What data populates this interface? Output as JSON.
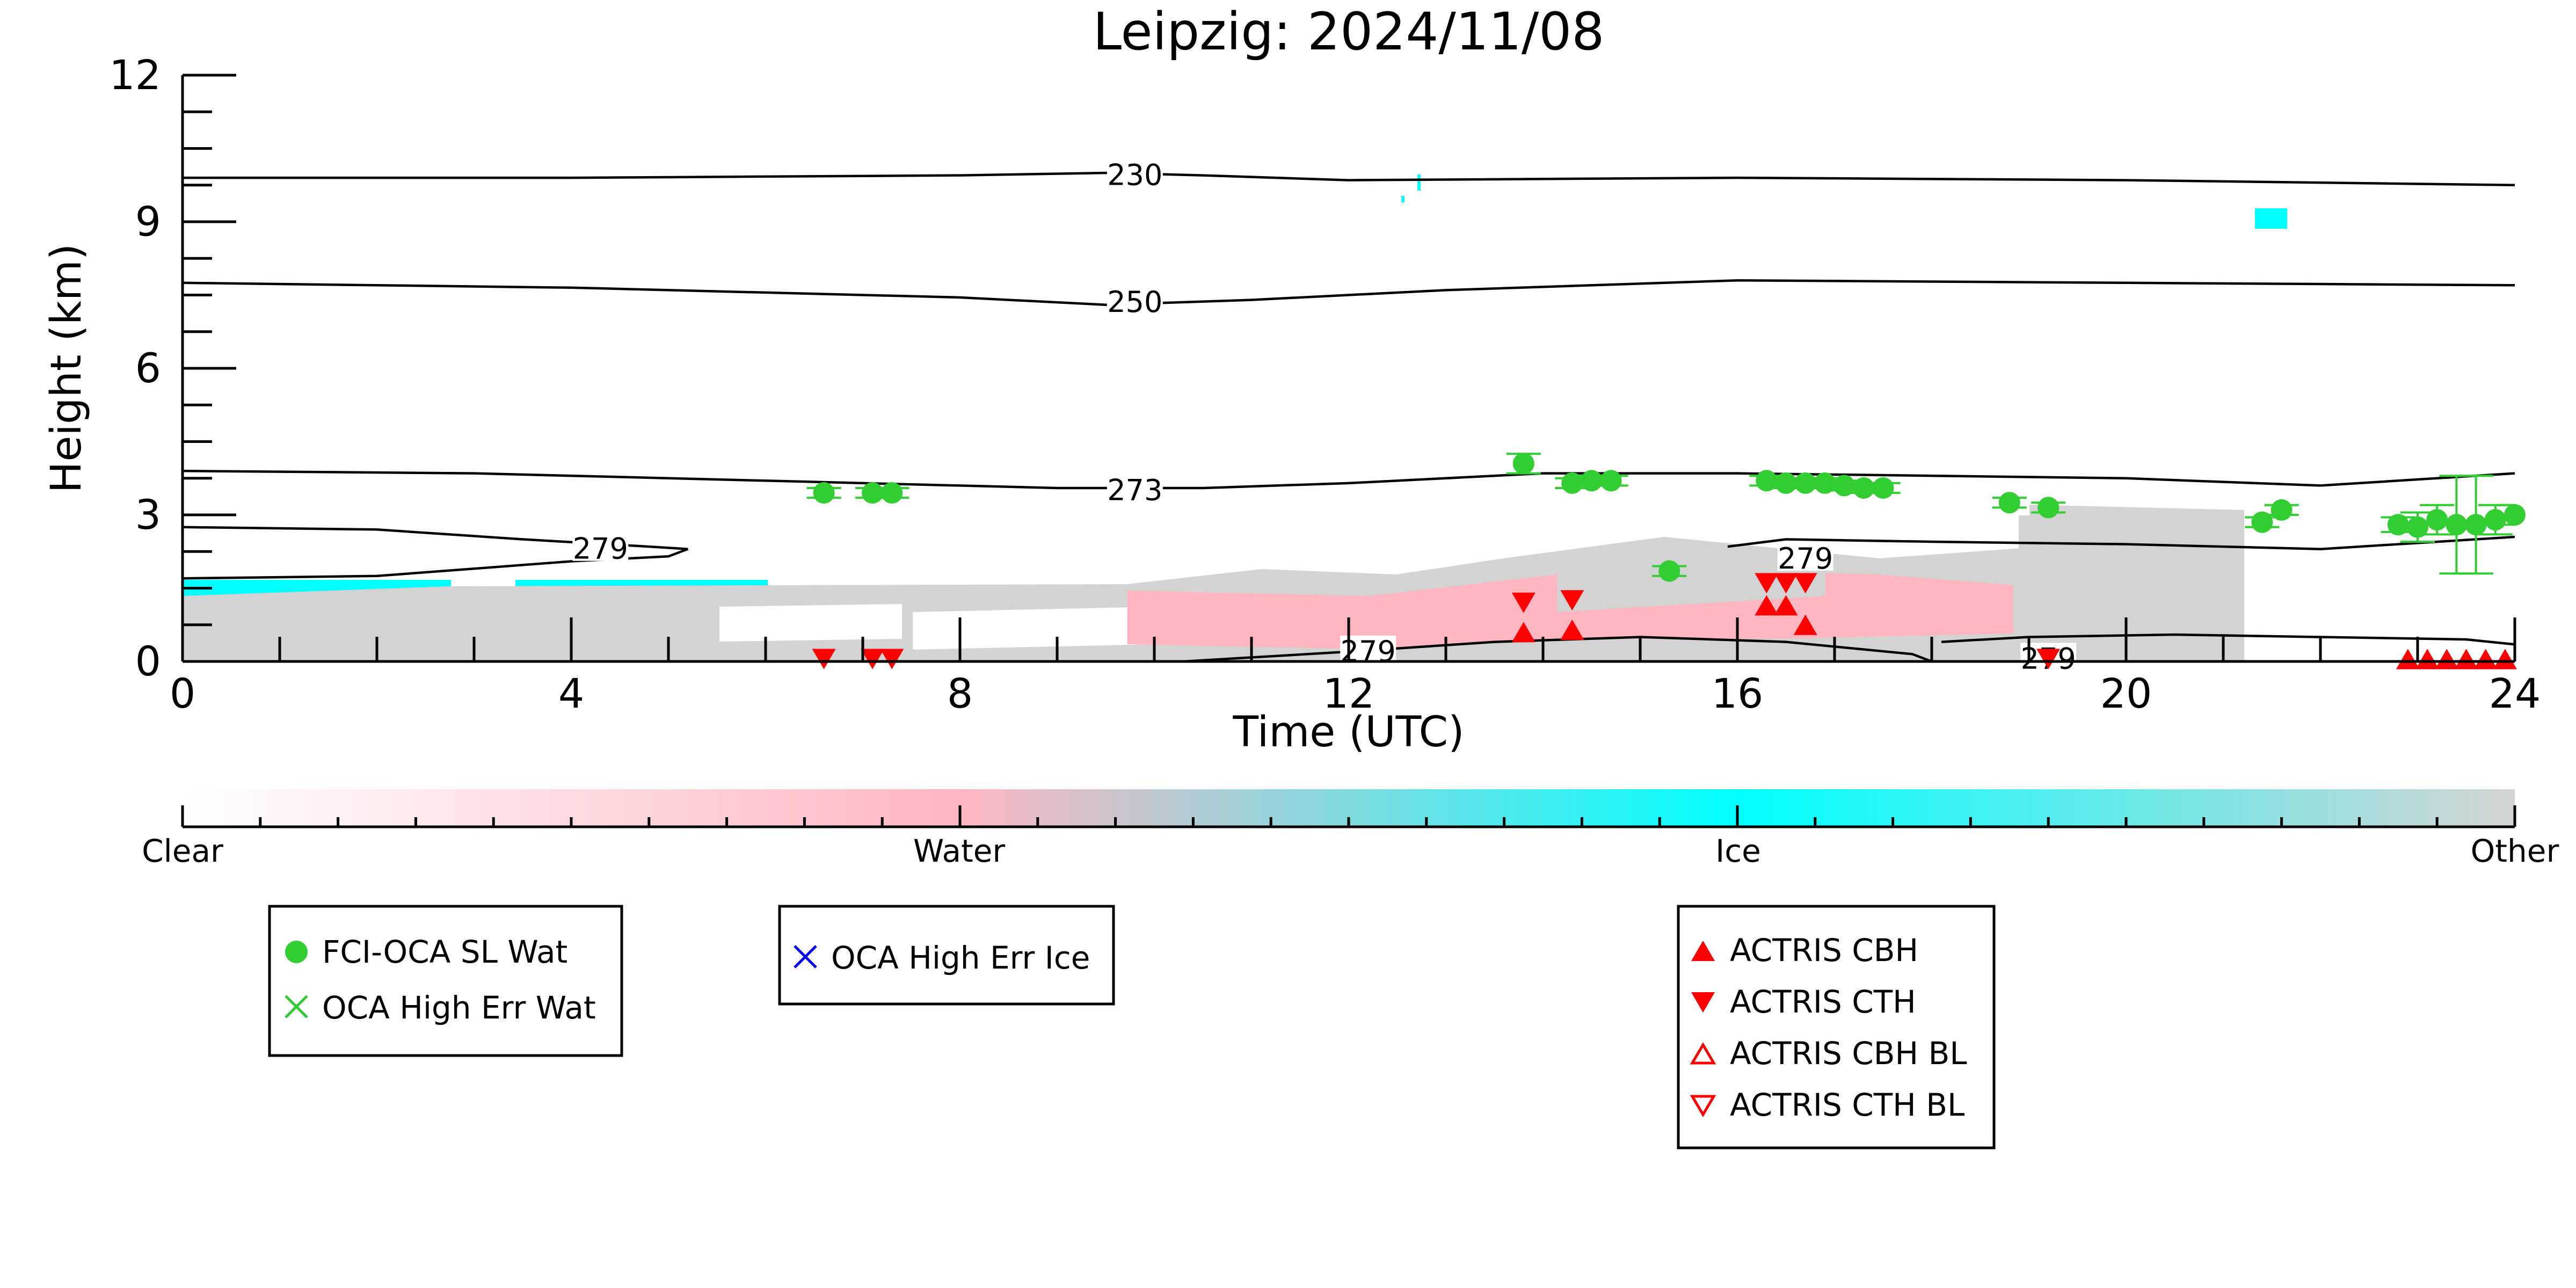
{
  "chart_data": {
    "type": "scatter",
    "title": "Leipzig: 2024/11/08",
    "xlabel": "Time (UTC)",
    "ylabel": "Height (km)",
    "xlim": [
      0,
      24
    ],
    "ylim": [
      0,
      12
    ],
    "xticks": [
      0,
      4,
      8,
      12,
      16,
      20,
      24
    ],
    "yticks": [
      0,
      3,
      6,
      9,
      12
    ],
    "colors": {
      "clear": "#ffffff",
      "water": "#ffb6c1",
      "ice": "#00ffff",
      "other": "#d3d3d3",
      "fci_wat": "#32cd32",
      "oca_ice": "#0000ff",
      "actris": "#ff0000"
    },
    "colorbar": {
      "labels": [
        "Clear",
        "Water",
        "Ice",
        "Other"
      ],
      "stops": [
        0,
        0.333,
        0.667,
        1
      ]
    },
    "contours": [
      {
        "label": "230",
        "label_x": 9.8,
        "label_y": 9.95,
        "points": [
          [
            0,
            9.9
          ],
          [
            4,
            9.9
          ],
          [
            8,
            9.95
          ],
          [
            9.5,
            10.0
          ],
          [
            10.5,
            9.95
          ],
          [
            12,
            9.85
          ],
          [
            16,
            9.9
          ],
          [
            20,
            9.85
          ],
          [
            24,
            9.75
          ]
        ]
      },
      {
        "label": "250",
        "label_x": 9.8,
        "label_y": 7.35,
        "points": [
          [
            0,
            7.75
          ],
          [
            4,
            7.65
          ],
          [
            8,
            7.45
          ],
          [
            9.5,
            7.3
          ],
          [
            11,
            7.4
          ],
          [
            13,
            7.6
          ],
          [
            16,
            7.8
          ],
          [
            20,
            7.75
          ],
          [
            24,
            7.7
          ]
        ]
      },
      {
        "label": "273",
        "label_x": 9.8,
        "label_y": 3.5,
        "points": [
          [
            0,
            3.9
          ],
          [
            3,
            3.85
          ],
          [
            6,
            3.7
          ],
          [
            9,
            3.55
          ],
          [
            10.5,
            3.55
          ],
          [
            12,
            3.65
          ],
          [
            14,
            3.85
          ],
          [
            16,
            3.85
          ],
          [
            20,
            3.75
          ],
          [
            22,
            3.6
          ],
          [
            24,
            3.85
          ]
        ]
      },
      {
        "label": "279",
        "label_x": 4.3,
        "label_y": 2.3,
        "points": [
          [
            0,
            2.75
          ],
          [
            2,
            2.7
          ],
          [
            3.5,
            2.5
          ],
          [
            4.8,
            2.35
          ],
          [
            5.2,
            2.3
          ],
          [
            5,
            2.15
          ],
          [
            4,
            2.05
          ],
          [
            2,
            1.75
          ],
          [
            0,
            1.7
          ]
        ]
      },
      {
        "label": "279",
        "label_x": 16.7,
        "label_y": 2.1,
        "points": [
          [
            15.9,
            2.35
          ],
          [
            16.5,
            2.5
          ],
          [
            18,
            2.45
          ],
          [
            20,
            2.4
          ],
          [
            22,
            2.3
          ],
          [
            24,
            2.55
          ]
        ]
      },
      {
        "label": "279",
        "label_x": 12.2,
        "label_y": 0.2,
        "points": [
          [
            10.3,
            0
          ],
          [
            12,
            0.2
          ],
          [
            13.5,
            0.4
          ],
          [
            15,
            0.5
          ],
          [
            16.5,
            0.4
          ],
          [
            17.8,
            0.15
          ],
          [
            18,
            0
          ]
        ]
      },
      {
        "label": "279",
        "label_x": 19.2,
        "label_y": 0.05,
        "points": [
          [
            18.1,
            0.4
          ],
          [
            19,
            0.5
          ],
          [
            20.5,
            0.55
          ],
          [
            22,
            0.5
          ],
          [
            23.5,
            0.45
          ],
          [
            24,
            0.35
          ]
        ]
      }
    ],
    "series": [
      {
        "name": "FCI-OCA SL Wat",
        "marker": "circle",
        "points": [
          {
            "x": 6.6,
            "y": 3.45,
            "err": 0.1
          },
          {
            "x": 7.1,
            "y": 3.45,
            "err": 0.1
          },
          {
            "x": 7.3,
            "y": 3.45,
            "err": 0.1
          },
          {
            "x": 13.8,
            "y": 4.05,
            "err": 0.2
          },
          {
            "x": 14.3,
            "y": 3.65,
            "err": 0.1
          },
          {
            "x": 14.5,
            "y": 3.7,
            "err": 0.1
          },
          {
            "x": 14.7,
            "y": 3.7,
            "err": 0.1
          },
          {
            "x": 15.3,
            "y": 1.85,
            "err": 0.1
          },
          {
            "x": 16.3,
            "y": 3.7,
            "err": 0.1
          },
          {
            "x": 16.5,
            "y": 3.65,
            "err": 0.1
          },
          {
            "x": 16.7,
            "y": 3.65,
            "err": 0.1
          },
          {
            "x": 16.9,
            "y": 3.65,
            "err": 0.1
          },
          {
            "x": 17.1,
            "y": 3.6,
            "err": 0.1
          },
          {
            "x": 17.3,
            "y": 3.55,
            "err": 0.1
          },
          {
            "x": 17.5,
            "y": 3.55,
            "err": 0.1
          },
          {
            "x": 18.8,
            "y": 3.25,
            "err": 0.1
          },
          {
            "x": 19.2,
            "y": 3.15,
            "err": 0.1
          },
          {
            "x": 21.4,
            "y": 2.85,
            "err": 0.1
          },
          {
            "x": 21.6,
            "y": 3.1,
            "err": 0.1
          },
          {
            "x": 22.8,
            "y": 2.8,
            "err": 0.15
          },
          {
            "x": 23.0,
            "y": 2.75,
            "err": 0.3
          },
          {
            "x": 23.2,
            "y": 2.9,
            "err": 0.3
          },
          {
            "x": 23.4,
            "y": 2.8,
            "err": 1.0
          },
          {
            "x": 23.6,
            "y": 2.8,
            "err": 1.0
          },
          {
            "x": 23.8,
            "y": 2.9,
            "err": 0.3
          },
          {
            "x": 24.0,
            "y": 3.0,
            "err": 0.2
          }
        ]
      },
      {
        "name": "OCA High Err Wat",
        "marker": "x",
        "points": []
      },
      {
        "name": "OCA High Err Ice",
        "marker": "x",
        "points": []
      },
      {
        "name": "ACTRIS CBH",
        "marker": "triangle-up",
        "points": [
          {
            "x": 13.8,
            "y": 0.6
          },
          {
            "x": 14.3,
            "y": 0.65
          },
          {
            "x": 16.3,
            "y": 1.15
          },
          {
            "x": 16.5,
            "y": 1.15
          },
          {
            "x": 16.7,
            "y": 0.75
          },
          {
            "x": 22.9,
            "y": 0.05
          },
          {
            "x": 23.1,
            "y": 0.05
          },
          {
            "x": 23.3,
            "y": 0.05
          },
          {
            "x": 23.5,
            "y": 0.05
          },
          {
            "x": 23.7,
            "y": 0.05
          },
          {
            "x": 23.9,
            "y": 0.05
          }
        ]
      },
      {
        "name": "ACTRIS CTH",
        "marker": "triangle-down",
        "points": [
          {
            "x": 6.6,
            "y": 0.05
          },
          {
            "x": 7.1,
            "y": 0.05
          },
          {
            "x": 7.3,
            "y": 0.05
          },
          {
            "x": 13.8,
            "y": 1.2
          },
          {
            "x": 14.3,
            "y": 1.25
          },
          {
            "x": 16.3,
            "y": 1.6
          },
          {
            "x": 16.5,
            "y": 1.6
          },
          {
            "x": 16.7,
            "y": 1.6
          },
          {
            "x": 19.2,
            "y": 0.05
          }
        ]
      },
      {
        "name": "ACTRIS CBH BL",
        "marker": "triangle-up-open",
        "points": []
      },
      {
        "name": "ACTRIS CTH BL",
        "marker": "triangle-down-open",
        "points": []
      }
    ],
    "legend": [
      {
        "placement": "below-left",
        "entries": [
          "FCI-OCA SL Wat",
          "OCA High Err Wat"
        ]
      },
      {
        "placement": "below-center",
        "entries": [
          "OCA High Err Ice"
        ]
      },
      {
        "placement": "below-right",
        "entries": [
          "ACTRIS CBH",
          "ACTRIS CTH",
          "ACTRIS CBH BL",
          "ACTRIS CTH BL"
        ]
      }
    ]
  }
}
